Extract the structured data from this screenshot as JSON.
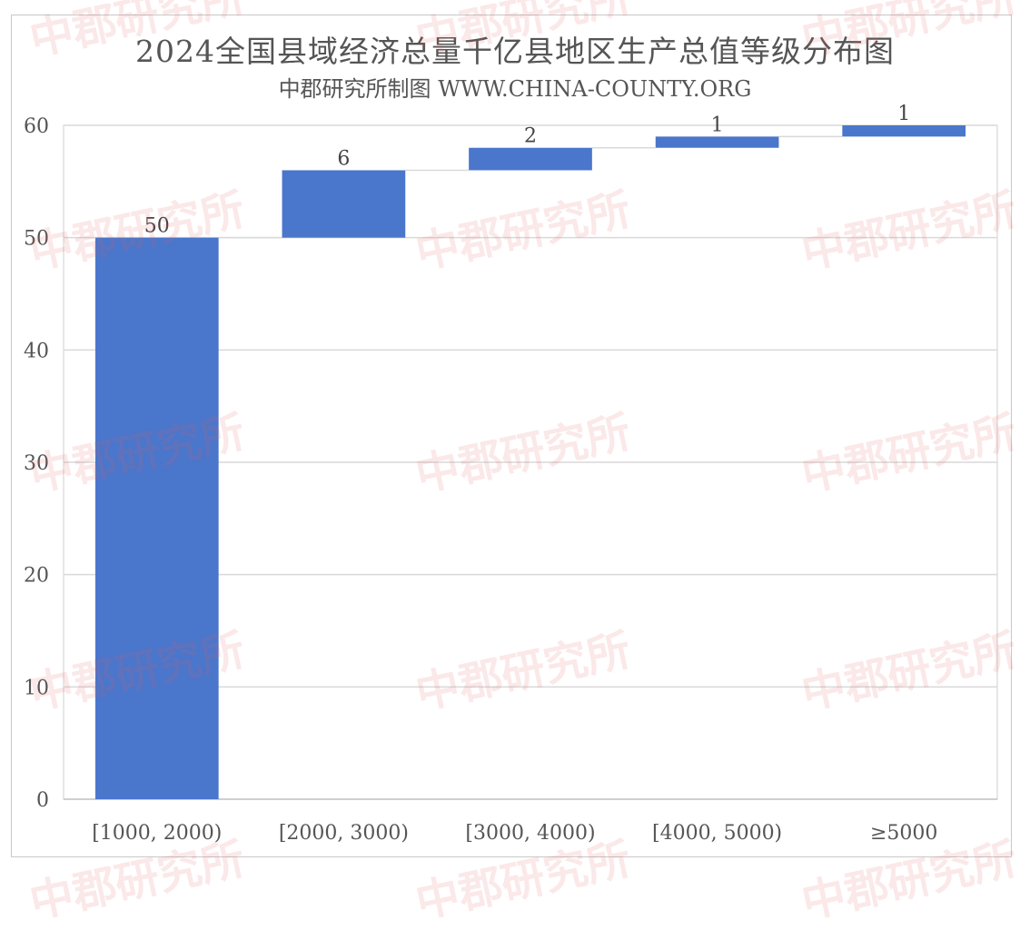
{
  "header": {
    "title": "2024全国县域经济总量千亿县地区生产总值等级分布图",
    "subtitle": "中郡研究所制图 WWW.CHINA-COUNTY.ORG"
  },
  "watermark": "中郡研究所",
  "colors": {
    "bar": "#4a76cc",
    "grid": "#d9d9d9",
    "connector": "#d9d9d9"
  },
  "chart_data": {
    "type": "bar",
    "subtype": "waterfall",
    "title": "2024全国县域经济总量千亿县地区生产总值等级分布图",
    "subtitle": "中郡研究所制图 WWW.CHINA-COUNTY.ORG",
    "categories": [
      "[1000, 2000)",
      "[2000, 3000)",
      "[3000, 4000)",
      "[4000, 5000)",
      "≥5000"
    ],
    "values": [
      50,
      6,
      2,
      1,
      1
    ],
    "data_labels": [
      "50",
      "6",
      "2",
      "1",
      "1"
    ],
    "ylim": [
      0,
      60
    ],
    "yticks": [
      "0",
      "10",
      "20",
      "30",
      "40",
      "50",
      "60"
    ],
    "grid": true,
    "legend": "none"
  }
}
